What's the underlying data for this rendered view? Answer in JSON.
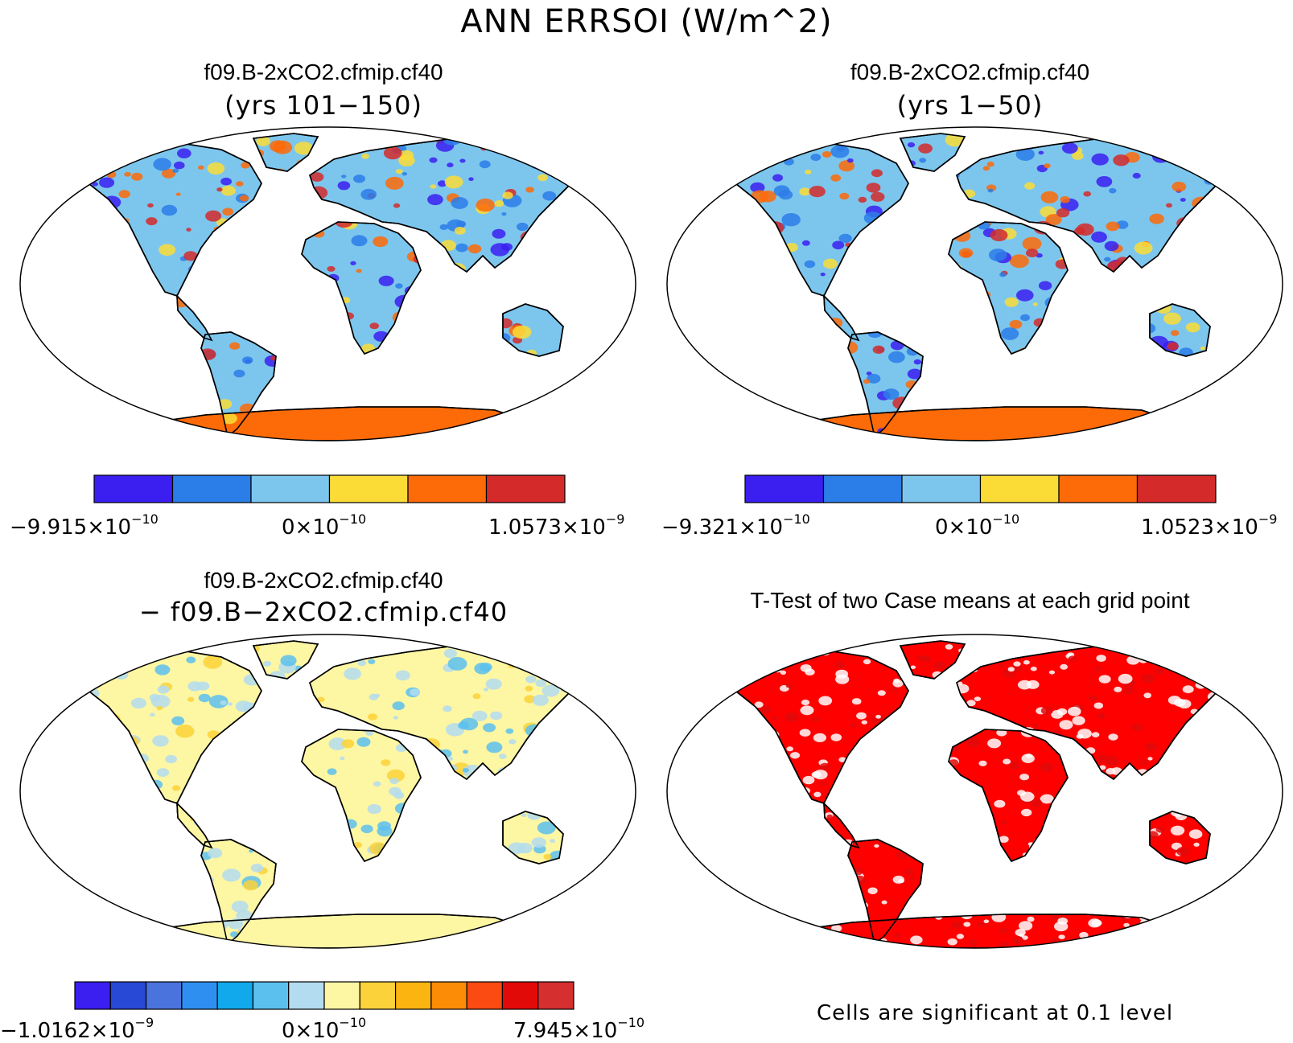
{
  "title": "ANN ERRSOI (W/m^2)",
  "panels": [
    {
      "title": "f09.B-2xCO2.cfmip.cf40",
      "subtitle": "(yrs 101−150)",
      "colorbar": {
        "colors": [
          "#3b1ef0",
          "#2b7de8",
          "#7cc6ee",
          "#fbdc37",
          "#fd6a08",
          "#d42a2a"
        ],
        "min": {
          "mant": "−9.915×10",
          "exp": "−10"
        },
        "mid": {
          "mant": "0×10",
          "exp": "−10"
        },
        "max": {
          "mant": "1.0573×10",
          "exp": "−9"
        }
      }
    },
    {
      "title": "f09.B-2xCO2.cfmip.cf40",
      "subtitle": "(yrs 1−50)",
      "colorbar": {
        "colors": [
          "#3b1ef0",
          "#2b7de8",
          "#7cc6ee",
          "#fbdc37",
          "#fd6a08",
          "#d42a2a"
        ],
        "min": {
          "mant": "−9.321×10",
          "exp": "−10"
        },
        "mid": {
          "mant": "0×10",
          "exp": "−10"
        },
        "max": {
          "mant": "1.0523×10",
          "exp": "−9"
        }
      }
    },
    {
      "title": "f09.B-2xCO2.cfmip.cf40",
      "subtitle": "− f09.B−2xCO2.cfmip.cf40",
      "colorbar": {
        "colors": [
          "#3b1ef0",
          "#2848d6",
          "#4a73dd",
          "#2f8ff0",
          "#11a9ec",
          "#5cc0ee",
          "#b3dcf0",
          "#fdf6a3",
          "#fbd23a",
          "#fcb411",
          "#fc8c06",
          "#fc4a13",
          "#e20909",
          "#d52f2f"
        ],
        "min": {
          "mant": "−1.0162×10",
          "exp": "−9"
        },
        "mid": {
          "mant": "0×10",
          "exp": "−10"
        },
        "max": {
          "mant": "7.945×10",
          "exp": "−10"
        }
      }
    },
    {
      "title": "T-Test of two Case means at each grid point",
      "note": "Cells are significant at 0.1 level"
    }
  ],
  "fill_colors": {
    "panel1_land": "#7cc6ee",
    "panel1_antarctica": "#fd6a08",
    "panel2_land": "#7cc6ee",
    "panel2_antarctica": "#fd6a08",
    "panel3_land": "#fdf6a3",
    "panel4_land": "#ff0000"
  }
}
